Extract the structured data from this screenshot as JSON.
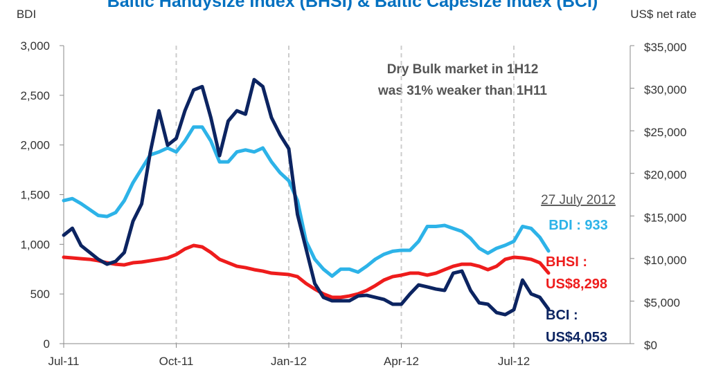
{
  "chart_data": {
    "type": "line",
    "title": "Baltic Handysize Index (BHSI) & Baltic Capesize Index (BCI)",
    "y_label": "BDI",
    "y2_label": "US$ net rate",
    "annotations": [
      "Dry Bulk market in 1H12",
      "was 31% weaker than 1H11",
      "27 July 2012"
    ],
    "categories": [
      "Jul-11",
      null,
      null,
      null,
      null,
      null,
      null,
      null,
      null,
      null,
      null,
      null,
      null,
      "Oct-11",
      null,
      null,
      null,
      null,
      null,
      null,
      null,
      null,
      null,
      null,
      null,
      null,
      "Jan-12",
      null,
      null,
      null,
      null,
      null,
      null,
      null,
      null,
      null,
      null,
      null,
      null,
      "Apr-12",
      null,
      null,
      null,
      null,
      null,
      null,
      null,
      null,
      null,
      null,
      null,
      null,
      "Jul-12",
      null,
      null,
      null,
      null
    ],
    "ylim": [
      0,
      3000
    ],
    "yticks": [
      0,
      500,
      {
        "value": 1000,
        "label": "1,000"
      },
      {
        "value": 1500,
        "label": "1,500"
      },
      {
        "value": 2000,
        "label": "2,000"
      },
      {
        "value": 2500,
        "label": "2,500"
      },
      {
        "value": 3000,
        "label": "3,000"
      }
    ],
    "y2lim": [
      0,
      35000
    ],
    "y2ticks": [
      {
        "value": 0,
        "label": "$0"
      },
      {
        "value": 5000,
        "label": "$5,000"
      },
      {
        "value": 10000,
        "label": "$10,000"
      },
      {
        "value": 15000,
        "label": "$15,000"
      },
      {
        "value": 20000,
        "label": "$20,000"
      },
      {
        "value": 25000,
        "label": "$25,000"
      },
      {
        "value": 30000,
        "label": "$30,000"
      },
      {
        "value": 35000,
        "label": "$35,000"
      }
    ],
    "grid": true,
    "series": [
      {
        "label": [
          "BDI : 933"
        ],
        "color": "#2db3e8",
        "axis": "y",
        "values": [
          1440,
          1460,
          1410,
          1350,
          1290,
          1280,
          1320,
          1440,
          1620,
          1760,
          1900,
          1930,
          1970,
          1930,
          2040,
          2180,
          2180,
          2040,
          1830,
          1830,
          1930,
          1950,
          1930,
          1970,
          1830,
          1720,
          1640,
          1440,
          1030,
          850,
          750,
          680,
          750,
          750,
          720,
          780,
          850,
          900,
          930,
          940,
          940,
          1030,
          1180,
          1180,
          1190,
          1160,
          1130,
          1060,
          960,
          910,
          960,
          990,
          1030,
          1180,
          1160,
          1070,
          933
        ]
      },
      {
        "label": [
          "BHSI :",
          "US$8,298"
        ],
        "color": "#ee1c1c",
        "axis": "y2",
        "values": [
          10150,
          10070,
          9980,
          9900,
          9740,
          9500,
          9330,
          9250,
          9500,
          9580,
          9740,
          9900,
          10070,
          10470,
          11120,
          11530,
          11360,
          10710,
          9900,
          9500,
          9090,
          8930,
          8690,
          8520,
          8280,
          8200,
          8120,
          7870,
          7060,
          6410,
          5840,
          5440,
          5440,
          5600,
          5840,
          6250,
          6820,
          7470,
          7870,
          8040,
          8280,
          8280,
          8040,
          8280,
          8690,
          9090,
          9330,
          9330,
          9090,
          8690,
          9090,
          9900,
          10150,
          10070,
          9900,
          9500,
          8298
        ]
      },
      {
        "label": [
          "BCI :",
          "US$4,053"
        ],
        "color": "#0c2461",
        "axis": "y2",
        "values": [
          12740,
          13550,
          11530,
          10710,
          9900,
          9330,
          9660,
          10710,
          14370,
          16400,
          22480,
          27350,
          23300,
          24110,
          27350,
          29790,
          30190,
          26540,
          22080,
          26140,
          27350,
          26950,
          31010,
          30190,
          26540,
          24510,
          22890,
          15180,
          11120,
          7060,
          5440,
          5030,
          5030,
          5030,
          5600,
          5680,
          5440,
          5190,
          4630,
          4630,
          5840,
          6900,
          6660,
          6410,
          6250,
          8280,
          8520,
          6250,
          4790,
          4630,
          3650,
          3410,
          3980,
          7470,
          5840,
          5440,
          4053
        ]
      }
    ]
  }
}
